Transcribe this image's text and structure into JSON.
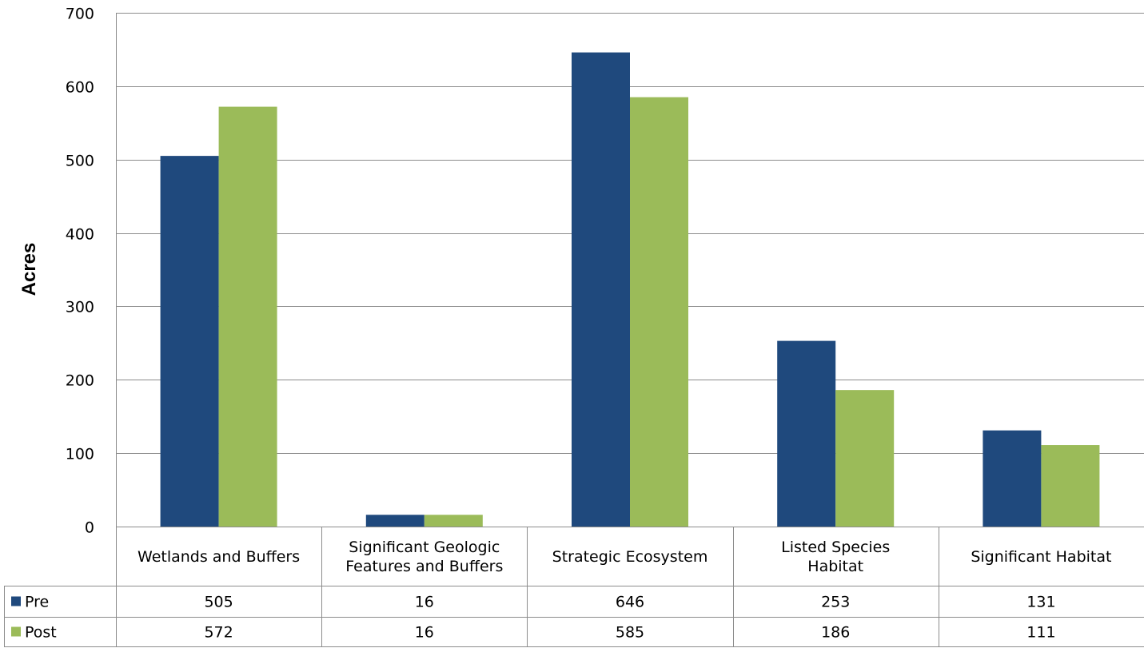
{
  "chart_data": {
    "type": "bar",
    "title": "",
    "xlabel": "",
    "ylabel": "Acres",
    "ylim": [
      0,
      700
    ],
    "yticks": [
      0,
      100,
      200,
      300,
      400,
      500,
      600,
      700
    ],
    "grid": true,
    "legend": "data-table",
    "categories": [
      "Wetlands and Buffers",
      "Significant Geologic Features and Buffers",
      "Strategic Ecosystem",
      "Listed Species Habitat",
      "Significant Habitat"
    ],
    "series": [
      {
        "name": "Pre",
        "color": "#1F497D",
        "values": [
          505,
          16,
          646,
          253,
          131
        ]
      },
      {
        "name": "Post",
        "color": "#9BBB59",
        "values": [
          572,
          16,
          585,
          186,
          111
        ]
      }
    ]
  }
}
